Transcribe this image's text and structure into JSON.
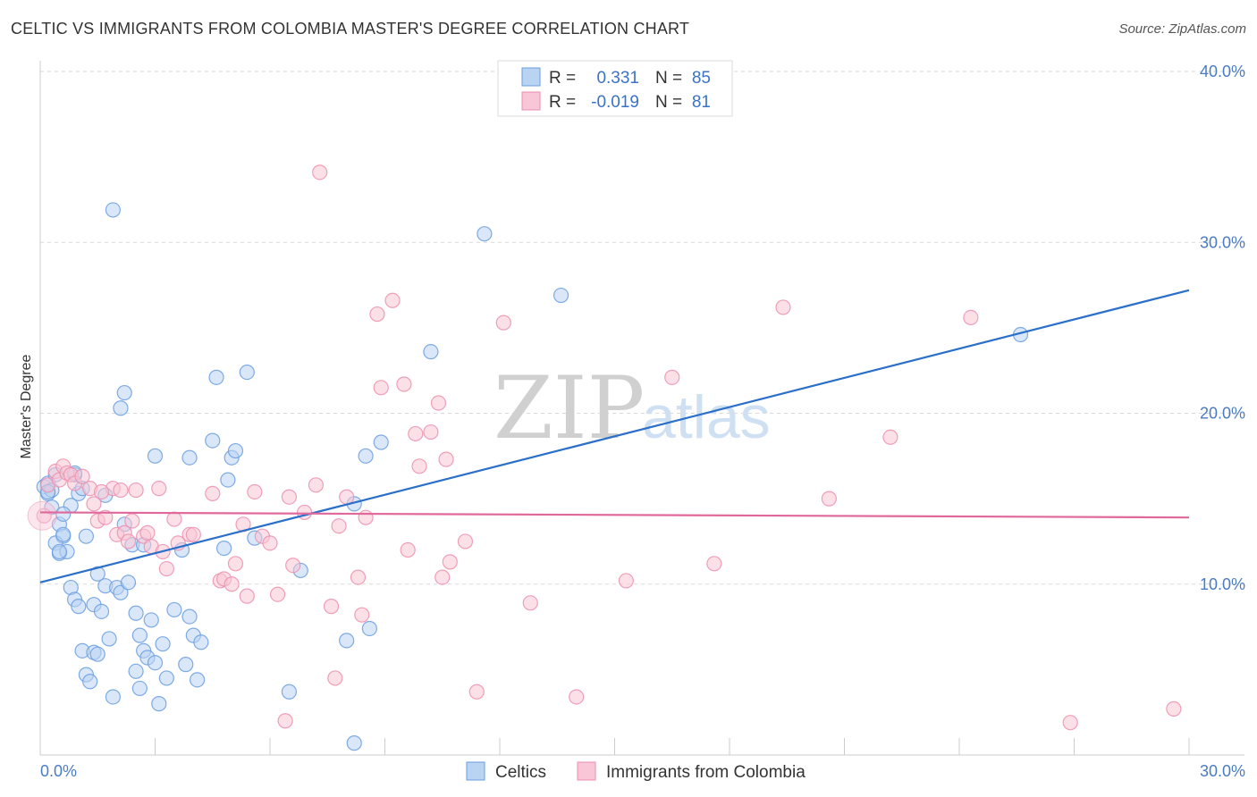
{
  "title": "CELTIC VS IMMIGRANTS FROM COLOMBIA MASTER'S DEGREE CORRELATION CHART",
  "source": "Source: ZipAtlas.com",
  "watermark": {
    "zip": "ZIP",
    "atlas": "atlas"
  },
  "colors": {
    "blue": "#6a9ee0",
    "blue_fill": "#b9d3f3",
    "blue_line": "#2a6fc9",
    "pink": "#ec8fae",
    "pink_fill": "#f8c6d6",
    "pink_line": "#e0689a",
    "grid": "#d9d9d9",
    "axis_text": "#4a7cc4"
  },
  "legend_stats": {
    "r_label": "R =",
    "n_label": "N =",
    "series": [
      {
        "r": "0.331",
        "n": "85"
      },
      {
        "r": "-0.019",
        "n": "81"
      }
    ]
  },
  "chart_data": {
    "type": "scatter",
    "title": "CELTIC VS IMMIGRANTS FROM COLOMBIA MASTER'S DEGREE CORRELATION CHART",
    "xlabel": "",
    "ylabel": "Master's Degree",
    "xlim": [
      0,
      30
    ],
    "ylim": [
      0,
      40
    ],
    "x_tick_labels": [
      "0.0%",
      "30.0%"
    ],
    "y_ticks": [
      10,
      20,
      30,
      40
    ],
    "y_tick_labels": [
      "10.0%",
      "20.0%",
      "30.0%",
      "40.0%"
    ],
    "grid": true,
    "legend": [
      "Celtics",
      "Immigrants from Colombia"
    ],
    "series": [
      {
        "name": "Celtics",
        "trend": {
          "x0": 0,
          "y0": 10.1,
          "x1": 30,
          "y1": 27.2
        },
        "points": [
          [
            0.1,
            15.7
          ],
          [
            0.2,
            15.3
          ],
          [
            0.3,
            14.5
          ],
          [
            0.2,
            15.9
          ],
          [
            0.4,
            16.4
          ],
          [
            0.5,
            13.5
          ],
          [
            0.6,
            12.8
          ],
          [
            0.4,
            12.4
          ],
          [
            0.5,
            11.8
          ],
          [
            0.6,
            12.9
          ],
          [
            0.7,
            11.9
          ],
          [
            0.8,
            14.6
          ],
          [
            0.9,
            16.4
          ],
          [
            1.0,
            15.3
          ],
          [
            1.1,
            15.6
          ],
          [
            0.8,
            9.8
          ],
          [
            0.9,
            9.1
          ],
          [
            1.0,
            8.7
          ],
          [
            1.1,
            6.1
          ],
          [
            1.2,
            4.7
          ],
          [
            1.3,
            4.3
          ],
          [
            1.4,
            6.0
          ],
          [
            1.5,
            5.9
          ],
          [
            1.4,
            8.8
          ],
          [
            1.5,
            10.6
          ],
          [
            1.6,
            8.4
          ],
          [
            1.7,
            9.9
          ],
          [
            1.8,
            6.8
          ],
          [
            1.9,
            3.4
          ],
          [
            2.0,
            9.8
          ],
          [
            2.1,
            9.5
          ],
          [
            2.2,
            13.5
          ],
          [
            2.3,
            10.1
          ],
          [
            2.4,
            12.3
          ],
          [
            2.5,
            8.3
          ],
          [
            2.5,
            4.9
          ],
          [
            2.6,
            7.0
          ],
          [
            2.6,
            3.9
          ],
          [
            2.7,
            6.1
          ],
          [
            2.8,
            5.7
          ],
          [
            2.9,
            7.9
          ],
          [
            3.0,
            5.4
          ],
          [
            3.1,
            3.0
          ],
          [
            3.2,
            6.5
          ],
          [
            3.3,
            4.5
          ],
          [
            3.5,
            8.5
          ],
          [
            3.8,
            5.3
          ],
          [
            3.9,
            8.1
          ],
          [
            4.0,
            7.0
          ],
          [
            4.1,
            4.4
          ],
          [
            4.2,
            6.6
          ],
          [
            1.9,
            31.9
          ],
          [
            2.2,
            21.2
          ],
          [
            2.1,
            20.3
          ],
          [
            3.0,
            17.5
          ],
          [
            3.9,
            17.4
          ],
          [
            4.5,
            18.4
          ],
          [
            4.6,
            22.1
          ],
          [
            5.0,
            17.4
          ],
          [
            5.1,
            17.8
          ],
          [
            5.4,
            22.4
          ],
          [
            5.6,
            12.7
          ],
          [
            4.9,
            16.1
          ],
          [
            4.8,
            12.1
          ],
          [
            6.8,
            10.8
          ],
          [
            6.5,
            3.7
          ],
          [
            8.2,
            14.7
          ],
          [
            8.5,
            17.5
          ],
          [
            8.9,
            18.3
          ],
          [
            8.0,
            6.7
          ],
          [
            8.6,
            7.4
          ],
          [
            8.2,
            0.7
          ],
          [
            10.2,
            23.6
          ],
          [
            11.6,
            30.5
          ],
          [
            13.6,
            26.9
          ],
          [
            25.6,
            24.6
          ],
          [
            1.2,
            12.8
          ],
          [
            2.7,
            12.3
          ],
          [
            0.3,
            15.5
          ],
          [
            0.6,
            14.1
          ],
          [
            1.7,
            15.2
          ],
          [
            3.7,
            12.0
          ],
          [
            0.5,
            11.9
          ],
          [
            0.2,
            15.4
          ],
          [
            0.9,
            16.5
          ]
        ]
      },
      {
        "name": "Immigrants from Colombia",
        "trend": {
          "x0": 0,
          "y0": 14.2,
          "x1": 30,
          "y1": 13.9
        },
        "points": [
          [
            0.1,
            14.0
          ],
          [
            0.2,
            15.8
          ],
          [
            0.4,
            16.6
          ],
          [
            0.5,
            16.1
          ],
          [
            0.6,
            16.9
          ],
          [
            0.7,
            16.5
          ],
          [
            0.8,
            16.4
          ],
          [
            0.9,
            15.9
          ],
          [
            1.1,
            16.3
          ],
          [
            1.3,
            15.6
          ],
          [
            1.4,
            14.7
          ],
          [
            1.5,
            13.7
          ],
          [
            1.7,
            13.9
          ],
          [
            1.9,
            15.6
          ],
          [
            2.0,
            12.9
          ],
          [
            2.1,
            15.5
          ],
          [
            2.2,
            13.0
          ],
          [
            2.3,
            12.5
          ],
          [
            2.4,
            13.7
          ],
          [
            2.5,
            15.5
          ],
          [
            2.7,
            12.8
          ],
          [
            2.8,
            13.0
          ],
          [
            2.9,
            12.2
          ],
          [
            3.1,
            15.6
          ],
          [
            3.2,
            11.9
          ],
          [
            3.3,
            10.9
          ],
          [
            3.5,
            13.8
          ],
          [
            3.6,
            12.4
          ],
          [
            3.9,
            12.9
          ],
          [
            4.0,
            12.9
          ],
          [
            4.5,
            15.3
          ],
          [
            4.7,
            10.2
          ],
          [
            4.8,
            10.3
          ],
          [
            5.0,
            10.0
          ],
          [
            5.1,
            11.2
          ],
          [
            5.3,
            13.5
          ],
          [
            5.4,
            9.3
          ],
          [
            5.6,
            15.4
          ],
          [
            5.8,
            12.8
          ],
          [
            6.0,
            12.4
          ],
          [
            6.2,
            9.4
          ],
          [
            6.5,
            15.1
          ],
          [
            6.6,
            11.1
          ],
          [
            6.9,
            14.2
          ],
          [
            7.2,
            15.8
          ],
          [
            7.6,
            8.7
          ],
          [
            7.8,
            13.4
          ],
          [
            8.0,
            15.1
          ],
          [
            8.3,
            10.4
          ],
          [
            8.4,
            8.2
          ],
          [
            8.5,
            13.9
          ],
          [
            8.8,
            25.8
          ],
          [
            9.2,
            26.6
          ],
          [
            8.9,
            21.5
          ],
          [
            9.5,
            21.7
          ],
          [
            9.6,
            12.0
          ],
          [
            9.8,
            18.8
          ],
          [
            9.9,
            16.9
          ],
          [
            10.2,
            18.9
          ],
          [
            10.4,
            20.6
          ],
          [
            10.6,
            17.3
          ],
          [
            10.7,
            11.3
          ],
          [
            10.5,
            10.4
          ],
          [
            11.1,
            12.5
          ],
          [
            7.3,
            34.1
          ],
          [
            7.7,
            4.5
          ],
          [
            6.4,
            2.0
          ],
          [
            11.4,
            3.7
          ],
          [
            12.1,
            25.3
          ],
          [
            12.8,
            8.9
          ],
          [
            14.0,
            3.4
          ],
          [
            15.3,
            10.2
          ],
          [
            16.5,
            22.1
          ],
          [
            17.6,
            11.2
          ],
          [
            19.4,
            26.2
          ],
          [
            20.6,
            15.0
          ],
          [
            22.2,
            18.6
          ],
          [
            24.3,
            25.6
          ],
          [
            26.9,
            1.9
          ],
          [
            29.6,
            2.7
          ],
          [
            1.6,
            15.4
          ]
        ]
      }
    ]
  }
}
